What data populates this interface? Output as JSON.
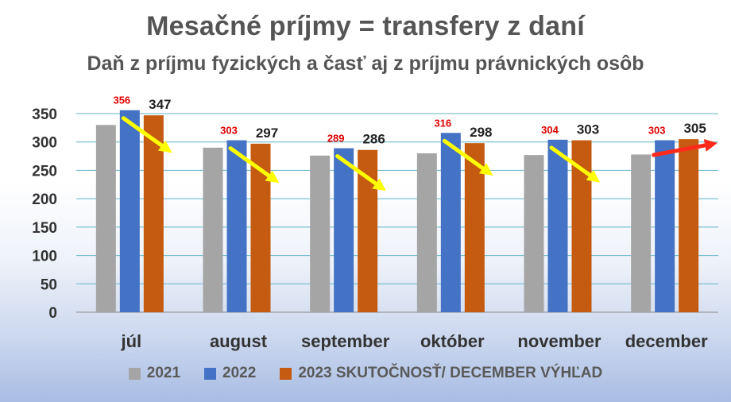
{
  "chart_data": {
    "type": "bar",
    "title": "Mesačné príjmy = transfery z daní",
    "subtitle": "Daň z príjmu fyzických a časť aj z príjmu právnických osôb",
    "categories": [
      "júl",
      "august",
      "september",
      "október",
      "november",
      "december"
    ],
    "series": [
      {
        "name": "2021",
        "color": "#a5a5a5",
        "values": [
          330,
          290,
          276,
          280,
          277,
          278
        ],
        "labels": [
          "",
          "",
          "",
          "",
          "",
          ""
        ]
      },
      {
        "name": "2022",
        "color": "#4472c4",
        "values": [
          356,
          303,
          289,
          316,
          304,
          303
        ],
        "labels": [
          "356",
          "303",
          "289",
          "316",
          "304",
          "303"
        ]
      },
      {
        "name": "2023 SKUTOČNOSŤ/ DECEMBER VÝHĽAD",
        "color": "#c55a11",
        "values": [
          347,
          297,
          286,
          298,
          303,
          305
        ],
        "labels": [
          "347",
          "297",
          "286",
          "298",
          "303",
          "305"
        ]
      }
    ],
    "yticks": [
      "0",
      "50",
      "100",
      "150",
      "200",
      "250",
      "300",
      "350"
    ],
    "ylim": [
      0,
      350
    ],
    "grid": true,
    "legend": "bottom",
    "arrows": [
      {
        "category": "júl",
        "color": "#ffff00",
        "direction": "down"
      },
      {
        "category": "august",
        "color": "#ffff00",
        "direction": "down"
      },
      {
        "category": "september",
        "color": "#ffff00",
        "direction": "down"
      },
      {
        "category": "október",
        "color": "#ffff00",
        "direction": "down"
      },
      {
        "category": "november",
        "color": "#ffff00",
        "direction": "down"
      },
      {
        "category": "december",
        "color": "#ff2a1a",
        "direction": "up"
      }
    ]
  }
}
